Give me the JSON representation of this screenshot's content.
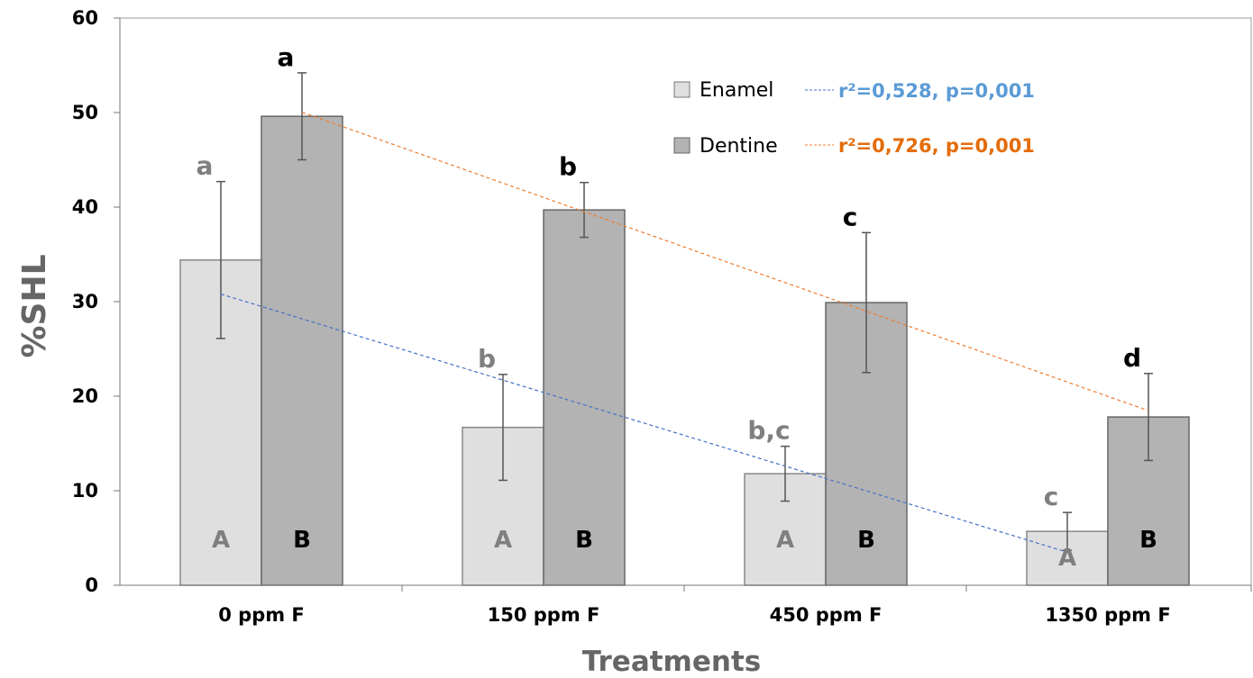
{
  "chart_data": {
    "type": "bar",
    "title": "",
    "xlabel": "Treatments",
    "ylabel": "%SHL",
    "ylim": [
      0,
      60
    ],
    "yticks": [
      "0",
      "10",
      "20",
      "30",
      "40",
      "50",
      "60"
    ],
    "categories": [
      "0 ppm F",
      "150 ppm F",
      "450 ppm F",
      "1350 ppm F"
    ],
    "series": [
      {
        "name": "Enamel",
        "color": "#e0dfe0",
        "values": [
          34.4,
          16.7,
          11.8,
          5.7
        ],
        "errors": [
          8.3,
          5.6,
          2.9,
          2.0
        ],
        "letters": [
          "a",
          "b",
          "b,c",
          "c"
        ],
        "bar_label": "A",
        "trend": {
          "color": "#4472c4",
          "label": "r²=0,528, p=0,001",
          "label_color": "#5b9bd5"
        }
      },
      {
        "name": "Dentine",
        "color": "#b3b3b3",
        "values": [
          49.6,
          39.7,
          29.9,
          17.8
        ],
        "errors": [
          4.6,
          2.9,
          7.4,
          4.6
        ],
        "letters": [
          "a",
          "b",
          "c",
          "d"
        ],
        "bar_label": "B",
        "trend": {
          "color": "#ed7d31",
          "label": "r²=0,726, p=0,001",
          "label_color": "#e46c0a"
        }
      }
    ],
    "legend": "top-right",
    "grid": false
  }
}
